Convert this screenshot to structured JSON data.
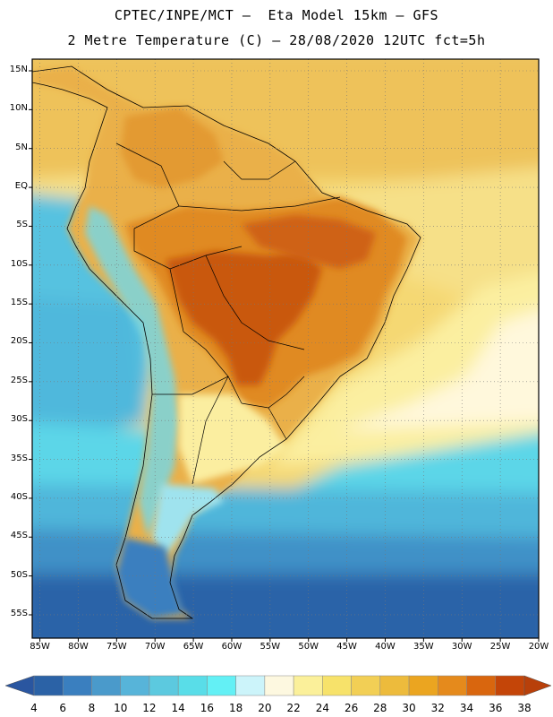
{
  "header": {
    "line1": "CPTEC/INPE/MCT –  Eta Model 15km – GFS",
    "line2": "2 Metre Temperature (C) – 28/08/2020 12UTC fct=5h"
  },
  "map": {
    "lat_ticks": [
      15,
      10,
      5,
      0,
      -5,
      -10,
      -15,
      -20,
      -25,
      -30,
      -35,
      -40,
      -45,
      -50,
      -55
    ],
    "lat_labels": [
      "15N",
      "10N",
      "5N",
      "EQ",
      "5S",
      "10S",
      "15S",
      "20S",
      "25S",
      "30S",
      "35S",
      "40S",
      "45S",
      "50S",
      "55S"
    ],
    "lon_ticks": [
      -85,
      -80,
      -75,
      -70,
      -65,
      -60,
      -55,
      -50,
      -45,
      -40,
      -35,
      -30,
      -25,
      -20
    ],
    "lon_labels": [
      "85W",
      "80W",
      "75W",
      "70W",
      "65W",
      "60W",
      "55W",
      "50W",
      "45W",
      "40W",
      "35W",
      "30W",
      "25W",
      "20W"
    ],
    "extent": {
      "lon_min": -86,
      "lon_max": -20,
      "lat_min": -58,
      "lat_max": 16.5
    }
  },
  "colorbar": {
    "labels": [
      "4",
      "6",
      "8",
      "10",
      "12",
      "14",
      "16",
      "18",
      "20",
      "22",
      "24",
      "26",
      "28",
      "30",
      "32",
      "34",
      "36",
      "38"
    ],
    "colors": [
      "#2b62a6",
      "#3a7fbf",
      "#4a9acb",
      "#57b4d9",
      "#5cc9df",
      "#59dde8",
      "#63f0f5",
      "#ccf4fa",
      "#fdf8e0",
      "#fbf09a",
      "#f7e26a",
      "#f2cf55",
      "#edbb3c",
      "#eba520",
      "#e58a1c",
      "#d9660e",
      "#c44508"
    ],
    "low_end": "#2a56a0",
    "high_end": "#b8400a"
  }
}
